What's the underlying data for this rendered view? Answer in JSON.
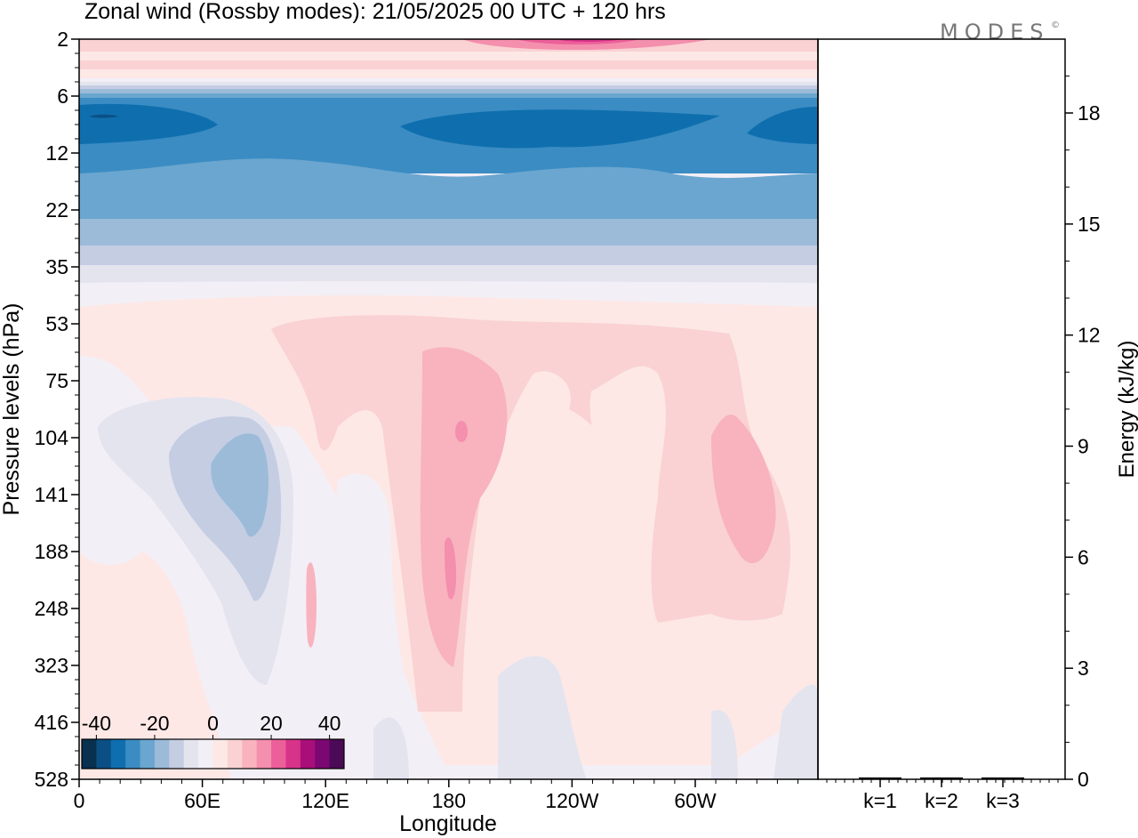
{
  "title": "Zonal wind (Rossby modes):  21/05/2025  00 UTC  + 120 hrs",
  "logo": {
    "text": "MODES",
    "mark": "©"
  },
  "chart_data": [
    {
      "type": "heatmap",
      "title": "Zonal wind (Rossby modes):  21/05/2025  00 UTC  + 120 hrs",
      "xlabel": "Longitude",
      "ylabel": "Pressure levels (hPa)",
      "y_scale": "log",
      "y_inverted": true,
      "x_ticks": [
        "0",
        "60E",
        "120E",
        "180",
        "120W",
        "60W"
      ],
      "x_tick_values": [
        0,
        60,
        120,
        180,
        240,
        300
      ],
      "xlim": [
        0,
        360
      ],
      "y_ticks": [
        "2",
        "6",
        "12",
        "22",
        "35",
        "53",
        "75",
        "104",
        "141",
        "188",
        "248",
        "323",
        "416",
        "528"
      ],
      "y_tick_values": [
        2,
        6,
        12,
        22,
        35,
        53,
        75,
        104,
        141,
        188,
        248,
        323,
        416,
        528
      ],
      "colorbar": {
        "ticks": [
          "-40",
          "-20",
          "0",
          "20",
          "40"
        ],
        "tick_values": [
          -40,
          -20,
          0,
          20,
          40
        ],
        "bins": [
          -45,
          -40,
          -35,
          -30,
          -25,
          -20,
          -15,
          -10,
          -5,
          0,
          5,
          10,
          15,
          20,
          25,
          30,
          35,
          40,
          45
        ],
        "colors": [
          "#08304f",
          "#0b4f85",
          "#0f6fae",
          "#3b8cc3",
          "#6aa6cf",
          "#9bbbd9",
          "#c5cde3",
          "#e4e4ef",
          "#f3eff6",
          "#fde8e6",
          "#fad2d3",
          "#f8b3be",
          "#f48fae",
          "#ec609a",
          "#d73489",
          "#a90f79",
          "#7b0872",
          "#4b0a55"
        ]
      },
      "grid": false,
      "legend": "colorbar bottom-left"
    },
    {
      "type": "bar",
      "categories": [
        "k=1",
        "k=2",
        "k=3"
      ],
      "values": [
        0.05,
        0.05,
        0.05
      ],
      "ylabel": "Energy (kJ/kg)",
      "ylim": [
        0,
        20
      ],
      "y_ticks": [
        "0",
        "3",
        "6",
        "9",
        "12",
        "15",
        "18"
      ],
      "y_tick_values": [
        0,
        3,
        6,
        9,
        12,
        15,
        18
      ],
      "y_axis_side": "right"
    }
  ]
}
